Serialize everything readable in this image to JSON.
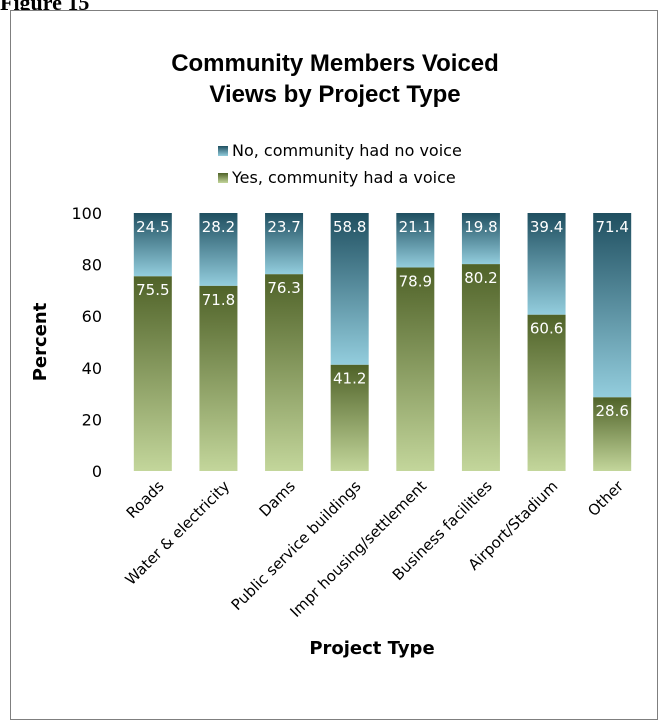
{
  "figure_label": "Figure 15",
  "chart_data": {
    "type": "bar",
    "stacked": true,
    "title": "Community  Members Voiced Views by Project Type",
    "title_lines": [
      "Community  Members Voiced",
      "Views by Project Type"
    ],
    "xlabel": "Project Type",
    "ylabel": "Percent",
    "ylim": [
      0,
      100
    ],
    "yticks": [
      0,
      20,
      40,
      60,
      80,
      100
    ],
    "grid": false,
    "legend_position": "top",
    "categories": [
      "Roads",
      "Water & electricity",
      "Dams",
      "Public service buildings",
      "Impr housing/settlement",
      "Business facilities",
      "Airport/Stadium",
      "Other"
    ],
    "series": [
      {
        "name": "Yes, community had a voice",
        "values": [
          75.5,
          71.8,
          76.3,
          41.2,
          78.9,
          80.2,
          60.6,
          28.6
        ],
        "color": "#4f6228",
        "color_light": "#c3d69b"
      },
      {
        "name": "No, community had no voice",
        "values": [
          24.5,
          28.2,
          23.7,
          58.8,
          21.1,
          19.8,
          39.4,
          71.4
        ],
        "color": "#1f4f60",
        "color_light": "#93cddd"
      }
    ],
    "legend_order": [
      "No, community had no voice",
      "Yes, community had a voice"
    ]
  }
}
